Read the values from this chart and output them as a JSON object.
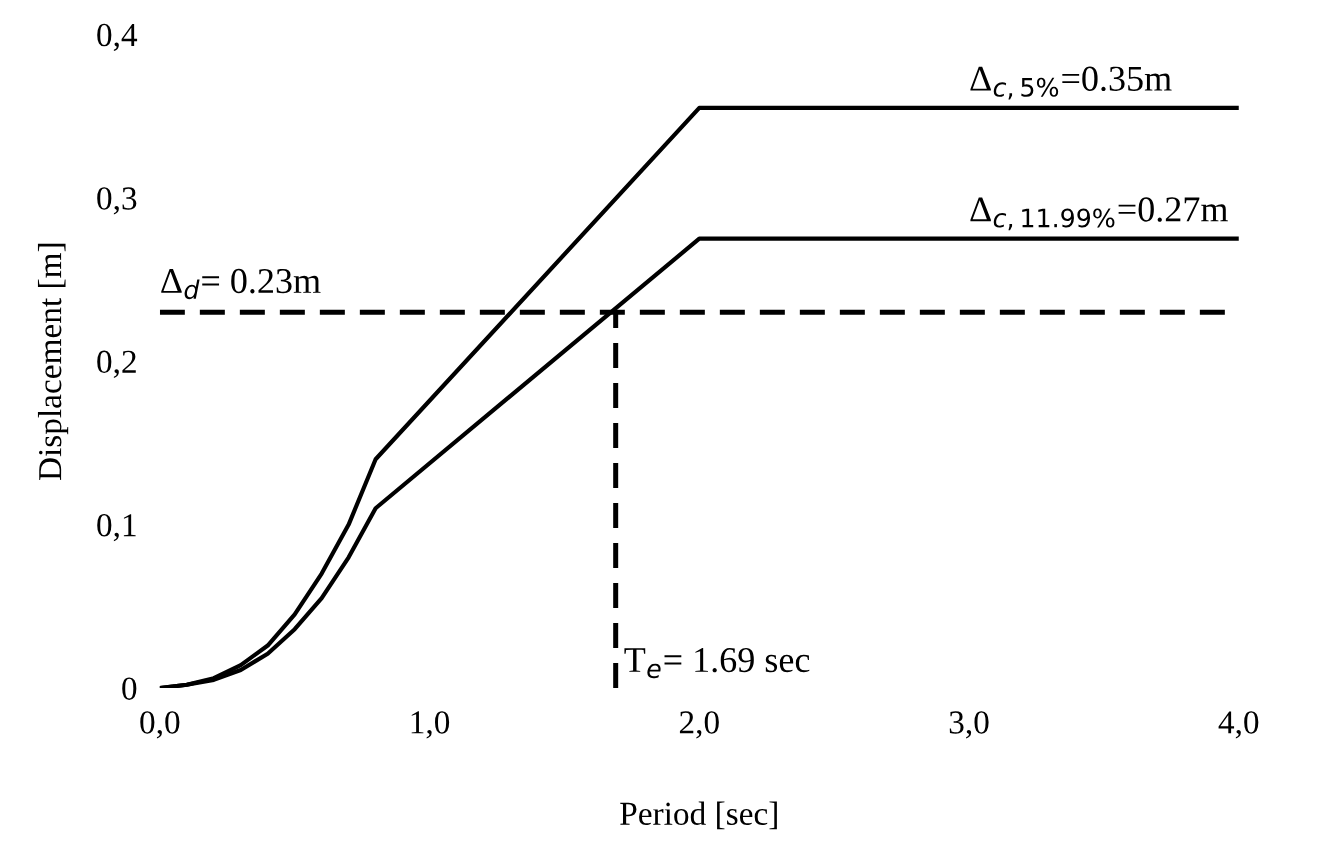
{
  "chart_data": {
    "type": "line",
    "xlabel": "Period [sec]",
    "ylabel": "Displacement [m]",
    "xlim": [
      0,
      4
    ],
    "ylim": [
      0,
      0.4
    ],
    "xticks": [
      {
        "value": 0,
        "label": "0,0"
      },
      {
        "value": 1,
        "label": "1,0"
      },
      {
        "value": 2,
        "label": "2,0"
      },
      {
        "value": 3,
        "label": "3,0"
      },
      {
        "value": 4,
        "label": "4,0"
      }
    ],
    "yticks": [
      0,
      {
        "value": 0.1,
        "label": "0,1"
      },
      {
        "value": 0.2,
        "label": "0,2"
      },
      {
        "value": 0.3,
        "label": "0,3"
      },
      {
        "value": 0.4,
        "label": "0,4"
      }
    ],
    "grid": false,
    "legend": false,
    "marker": "none",
    "series": [
      {
        "color": "#000000",
        "line_style": "solid",
        "x": [
          0,
          0.1,
          0.2,
          0.3,
          0.4,
          0.5,
          0.6,
          0.7,
          0.8,
          2.0,
          4.0
        ],
        "values": [
          0,
          0.002,
          0.006,
          0.014,
          0.026,
          0.045,
          0.07,
          0.1,
          0.14,
          0.355,
          0.355
        ]
      },
      {
        "color": "#000000",
        "line_style": "solid",
        "x": [
          0,
          0.1,
          0.2,
          0.3,
          0.4,
          0.5,
          0.6,
          0.7,
          0.8,
          2.0,
          4.0
        ],
        "values": [
          0,
          0.002,
          0.005,
          0.011,
          0.021,
          0.036,
          0.055,
          0.08,
          0.11,
          0.275,
          0.275
        ]
      },
      {
        "color": "#000000",
        "line_style": "dashed",
        "x": [
          0,
          4.0
        ],
        "values": [
          0.23,
          0.23
        ]
      },
      {
        "color": "#000000",
        "line_style": "dashed",
        "x": [
          1.69,
          1.69
        ],
        "values": [
          0,
          0.23
        ]
      }
    ],
    "annotations": [
      {
        "text": "Δ$_{c,5%}$=0.35m",
        "x": 3.0,
        "y": 0.36
      },
      {
        "text": "Δ$_{c,11.99%}$=0.27m",
        "x": 3.0,
        "y": 0.28
      },
      {
        "text": "Δ$_{d}$= 0.23m",
        "x": 0.0,
        "y": 0.237
      },
      {
        "text": "T$_{e}$= 1.69 sec",
        "x": 1.72,
        "y": 0.005
      }
    ]
  }
}
